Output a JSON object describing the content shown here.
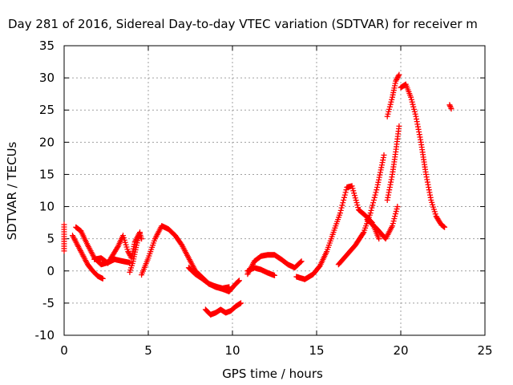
{
  "chart_data": {
    "type": "scatter",
    "title": "Day 281 of 2016, Sidereal Day-to-day VTEC variation (SDTVAR) for receiver m",
    "xlabel": "GPS time / hours",
    "ylabel": "SDTVAR / TECUs",
    "xlim": [
      0,
      25
    ],
    "ylim": [
      -10,
      35
    ],
    "xticks": [
      0,
      5,
      10,
      15,
      20,
      25
    ],
    "yticks": [
      -10,
      -5,
      0,
      5,
      10,
      15,
      20,
      25,
      30,
      35
    ],
    "grid": true,
    "marker": "+",
    "color": "#ff0000",
    "series": [
      {
        "x": [
          0.0,
          0.0
        ],
        "y": [
          7.2,
          3.1
        ]
      },
      {
        "x": [
          0.5,
          0.8,
          1.1,
          1.4,
          1.7,
          2.0,
          2.3
        ],
        "y": [
          5.5,
          4.0,
          2.5,
          1.0,
          0.0,
          -0.8,
          -1.2
        ]
      },
      {
        "x": [
          0.7,
          1.0,
          1.4,
          1.8,
          2.2,
          2.6,
          3.0,
          3.5,
          3.9
        ],
        "y": [
          6.8,
          6.2,
          4.0,
          2.0,
          1.0,
          1.3,
          1.8,
          1.5,
          1.3
        ]
      },
      {
        "x": [
          1.8,
          2.2,
          2.6,
          2.9,
          3.2,
          3.5,
          3.8,
          4.0,
          4.2,
          4.5
        ],
        "y": [
          1.8,
          2.0,
          1.2,
          2.5,
          3.8,
          5.5,
          3.0,
          2.0,
          4.5,
          6.0
        ]
      },
      {
        "x": [
          3.9,
          4.1,
          4.3,
          4.5,
          4.6
        ],
        "y": [
          -0.2,
          1.5,
          4.0,
          5.8,
          5.0
        ]
      },
      {
        "x": [
          4.6,
          5.0,
          5.4,
          5.8,
          6.2,
          6.6,
          7.0,
          7.4,
          7.8,
          8.2,
          8.6,
          9.0,
          9.4,
          9.8,
          10.2,
          10.4
        ],
        "y": [
          -0.6,
          2.0,
          5.0,
          7.0,
          6.5,
          5.5,
          4.0,
          2.0,
          0.0,
          -1.0,
          -2.0,
          -2.5,
          -2.8,
          -3.2,
          -2.0,
          -1.5
        ]
      },
      {
        "x": [
          7.4,
          7.8,
          8.2,
          8.6,
          9.0,
          9.4,
          9.8
        ],
        "y": [
          0.5,
          -0.5,
          -1.2,
          -2.0,
          -2.4,
          -2.7,
          -2.5
        ]
      },
      {
        "x": [
          8.4,
          8.7,
          9.0,
          9.3,
          9.6,
          9.9,
          10.2,
          10.5
        ],
        "y": [
          -6.0,
          -6.8,
          -6.5,
          -6.0,
          -6.5,
          -6.2,
          -5.5,
          -5.0
        ]
      },
      {
        "x": [
          10.9,
          11.3,
          11.7,
          12.1,
          12.5,
          12.9,
          13.3,
          13.7,
          14.1
        ],
        "y": [
          -0.5,
          1.5,
          2.3,
          2.5,
          2.5,
          1.8,
          1.0,
          0.5,
          1.5
        ]
      },
      {
        "x": [
          10.9,
          11.3,
          11.7,
          12.1,
          12.5
        ],
        "y": [
          0.0,
          0.5,
          0.2,
          -0.3,
          -0.7
        ]
      },
      {
        "x": [
          13.8,
          14.3,
          14.8,
          15.2,
          15.6,
          16.0,
          16.4,
          16.8,
          17.1,
          17.5,
          17.9,
          18.3,
          18.7
        ],
        "y": [
          -0.9,
          -1.3,
          -0.5,
          0.8,
          3.0,
          6.0,
          9.0,
          13.0,
          13.2,
          9.5,
          8.6,
          7.5,
          5.0
        ]
      },
      {
        "x": [
          16.3,
          16.8,
          17.3,
          17.8,
          18.2,
          18.6,
          19.0
        ],
        "y": [
          1.0,
          2.5,
          4.0,
          6.0,
          9.0,
          13.0,
          18.0
        ]
      },
      {
        "x": [
          18.0,
          18.6,
          19.1,
          19.5,
          19.8
        ],
        "y": [
          8.0,
          6.5,
          5.0,
          7.0,
          10.0
        ]
      },
      {
        "x": [
          19.2,
          19.5,
          19.7,
          19.9
        ],
        "y": [
          11.0,
          15.0,
          18.5,
          22.5
        ]
      },
      {
        "x": [
          19.2,
          19.5,
          19.7,
          19.9
        ],
        "y": [
          24.0,
          27.0,
          29.5,
          30.5
        ]
      },
      {
        "x": [
          20.0,
          20.3,
          20.6,
          20.9,
          21.2,
          21.5,
          21.8,
          22.1,
          22.4,
          22.6
        ],
        "y": [
          28.5,
          29.0,
          27.0,
          24.0,
          20.0,
          15.0,
          11.0,
          8.5,
          7.2,
          6.8
        ]
      },
      {
        "x": [
          22.9,
          23.0
        ],
        "y": [
          25.8,
          25.2
        ]
      }
    ]
  }
}
